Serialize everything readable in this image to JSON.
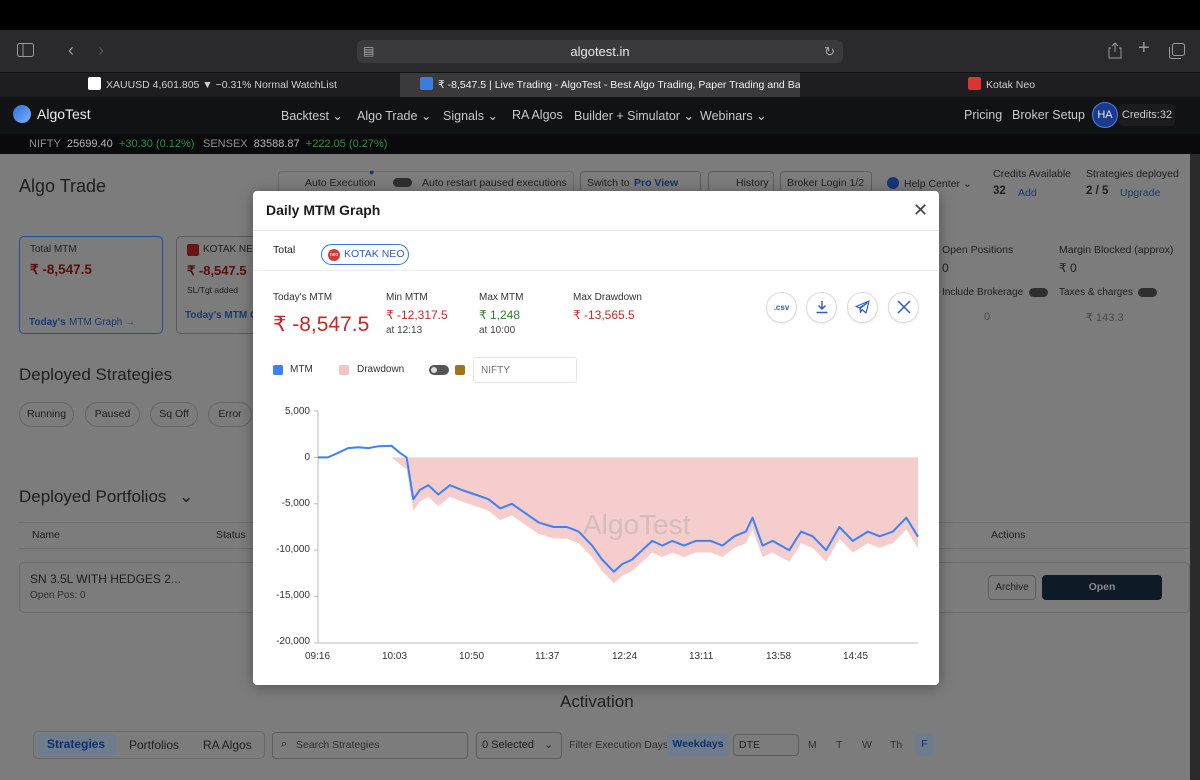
{
  "browser": {
    "url": "algotest.in",
    "tabs": [
      {
        "label": "XAUUSD 4,601.805 ▼ −0.31% Normal WatchList",
        "active": false
      },
      {
        "label": "₹ -8,547.5 | Live Trading - AlgoTest - Best Algo Trading, Paper Trading and Backtest…",
        "active": true
      },
      {
        "label": "Kotak Neo",
        "active": false
      }
    ]
  },
  "nav": {
    "brand": "AlgoTest",
    "items": [
      "Backtest",
      "Algo Trade",
      "Signals",
      "RA Algos",
      "Builder + Simulator",
      "Webinars"
    ],
    "pricing": "Pricing",
    "broker_setup": "Broker Setup",
    "avatar": "HA",
    "credits": "Credits:32"
  },
  "ticker": [
    {
      "name": "NIFTY",
      "value": "25699.40",
      "change": "+30.30 (0.12%)"
    },
    {
      "name": "SENSEX",
      "value": "83588.87",
      "change": "+222.05 (0.27%)"
    }
  ],
  "page": {
    "title": "Algo Trade",
    "auto_execution": "Auto Execution",
    "auto_restart": "Auto restart paused executions",
    "switch_to": "Switch to",
    "pro_view": "Pro View",
    "history": "History",
    "broker_login": "Broker Login 1/2",
    "help_center": "Help Center",
    "credits_label": "Credits Available",
    "credits_value": "32",
    "credits_add": "Add",
    "strategies_label": "Strategies deployed",
    "strategies_value": "2 / 5",
    "upgrade": "Upgrade",
    "total_mtm_label": "Total MTM",
    "total_mtm_value": "₹ -8,547.5",
    "todays_mtm_link": "Today's",
    "mtm_graph_link": "MTM Graph →",
    "broker_card_name": "KOTAK NEO",
    "broker_card_value": "₹ -8,547.5",
    "broker_card_note": "SL/Tgt added",
    "broker_card_link": "Today's  MTM G",
    "open_positions_label": "Open Positions",
    "open_positions_value": "0",
    "margin_label": "Margin Blocked (approx)",
    "margin_value": "₹ 0",
    "include_brokerage": "Include Brokerage",
    "brokerage_value": "0",
    "taxes_label": "Taxes & charges",
    "taxes_value": "₹ 143.3",
    "deployed_strategies": "Deployed Strategies",
    "filters": [
      "Running",
      "Paused",
      "Sq Off",
      "Error"
    ],
    "deployed_portfolios": "Deployed Portfolios",
    "col_name": "Name",
    "col_status": "Status",
    "col_actions": "Actions",
    "portfolio_name": "SN 3.5L WITH HEDGES 2...",
    "portfolio_open_pos": "Open Pos: 0",
    "archive": "Archive",
    "open": "Open",
    "activation": "Activation",
    "bottom_tabs": [
      "Strategies",
      "Portfolios",
      "RA Algos"
    ],
    "search_placeholder": "Search Strategies",
    "selected": "0 Selected",
    "filter_days_label": "Filter Execution Days",
    "weekdays": "Weekdays",
    "dte": "DTE",
    "days": [
      "M",
      "T",
      "W",
      "Th",
      "F"
    ]
  },
  "modal": {
    "title": "Daily MTM Graph",
    "tab_total": "Total",
    "tab_broker": "KOTAK NEO",
    "stats": {
      "todays_mtm_label": "Today's MTM",
      "todays_mtm_value": "₹ -8,547.5",
      "min_mtm_label": "Min MTM",
      "min_mtm_value": "₹ -12,317.5",
      "min_mtm_time": "at 12:13",
      "max_mtm_label": "Max MTM",
      "max_mtm_value": "₹ 1,248",
      "max_mtm_time": "at 10:00",
      "max_dd_label": "Max Drawdown",
      "max_dd_value": "₹ -13,565.5"
    },
    "actions": [
      {
        "name": "csv-button",
        "icon": ".csv"
      },
      {
        "name": "download-button",
        "icon": "download-icon"
      },
      {
        "name": "telegram-button",
        "icon": "telegram-icon"
      },
      {
        "name": "x-share-button",
        "icon": "x-icon"
      }
    ],
    "legend": {
      "mtm": "MTM",
      "drawdown": "Drawdown",
      "nifty_placeholder": "NIFTY"
    },
    "watermark": "AlgoTest",
    "colors": {
      "mtm": "#3b82f6",
      "drawdown": "#f3c4c4",
      "nifty": "#a0741f"
    }
  },
  "chart_data": {
    "type": "line",
    "title": "Daily MTM Graph",
    "xlabel": "",
    "ylabel": "",
    "ylim": [
      -20000,
      5000
    ],
    "yticks": [
      "5,000",
      "0",
      "-5,000",
      "-10,000",
      "-15,000",
      "-20,000"
    ],
    "xticks": [
      "09:16",
      "10:03",
      "10:50",
      "11:37",
      "12:24",
      "13:11",
      "13:58",
      "14:45"
    ],
    "grid": false,
    "legend": "top-left",
    "series": [
      {
        "name": "MTM",
        "x": [
          "09:16",
          "09:22",
          "09:28",
          "09:34",
          "09:40",
          "09:46",
          "09:52",
          "10:00",
          "10:05",
          "10:09",
          "10:13",
          "10:17",
          "10:22",
          "10:28",
          "10:35",
          "10:42",
          "10:50",
          "10:58",
          "11:05",
          "11:12",
          "11:20",
          "11:28",
          "11:37",
          "11:45",
          "11:52",
          "12:00",
          "12:06",
          "12:13",
          "12:18",
          "12:24",
          "12:30",
          "12:36",
          "12:42",
          "12:48",
          "12:55",
          "13:02",
          "13:11",
          "13:18",
          "13:25",
          "13:32",
          "13:36",
          "13:42",
          "13:48",
          "13:58",
          "14:05",
          "14:12",
          "14:20",
          "14:28",
          "14:36",
          "14:45",
          "14:52",
          "15:00",
          "15:08",
          "15:15"
        ],
        "values": [
          0,
          0,
          500,
          1000,
          1100,
          1000,
          1200,
          1248,
          500,
          0,
          -4500,
          -3500,
          -3000,
          -4000,
          -3000,
          -3500,
          -4000,
          -4500,
          -5500,
          -5000,
          -6000,
          -7000,
          -7500,
          -7500,
          -8000,
          -9500,
          -11000,
          -12317.5,
          -11500,
          -11000,
          -10000,
          -9000,
          -9500,
          -9000,
          -9500,
          -9000,
          -9000,
          -9500,
          -8500,
          -8000,
          -6500,
          -9500,
          -9000,
          -10000,
          -8000,
          -8500,
          -10000,
          -7500,
          -9000,
          -8000,
          -8500,
          -8000,
          -6500,
          -8547.5
        ]
      },
      {
        "name": "Drawdown",
        "x": [
          "09:16",
          "09:22",
          "09:28",
          "09:34",
          "09:40",
          "09:46",
          "09:52",
          "10:00",
          "10:05",
          "10:09",
          "10:13",
          "10:17",
          "10:22",
          "10:28",
          "10:35",
          "10:42",
          "10:50",
          "10:58",
          "11:05",
          "11:12",
          "11:20",
          "11:28",
          "11:37",
          "11:45",
          "11:52",
          "12:00",
          "12:06",
          "12:13",
          "12:18",
          "12:24",
          "12:30",
          "12:36",
          "12:42",
          "12:48",
          "12:55",
          "13:02",
          "13:11",
          "13:18",
          "13:25",
          "13:32",
          "13:36",
          "13:42",
          "13:48",
          "13:58",
          "14:05",
          "14:12",
          "14:20",
          "14:28",
          "14:36",
          "14:45",
          "14:52",
          "15:00",
          "15:08",
          "15:15"
        ],
        "values": [
          0,
          0,
          0,
          0,
          0,
          0,
          0,
          0,
          -748,
          -1248,
          -5748,
          -4748,
          -4248,
          -5248,
          -4248,
          -4748,
          -5248,
          -5748,
          -6748,
          -6248,
          -7248,
          -8248,
          -8748,
          -8748,
          -9248,
          -10748,
          -12248,
          -13565.5,
          -12748,
          -12248,
          -11248,
          -10248,
          -10748,
          -10248,
          -10748,
          -10248,
          -10248,
          -10748,
          -9748,
          -9248,
          -7748,
          -10748,
          -10248,
          -11248,
          -9248,
          -9748,
          -11248,
          -8748,
          -10248,
          -9248,
          -9748,
          -9248,
          -7748,
          -9795.5
        ]
      }
    ]
  }
}
